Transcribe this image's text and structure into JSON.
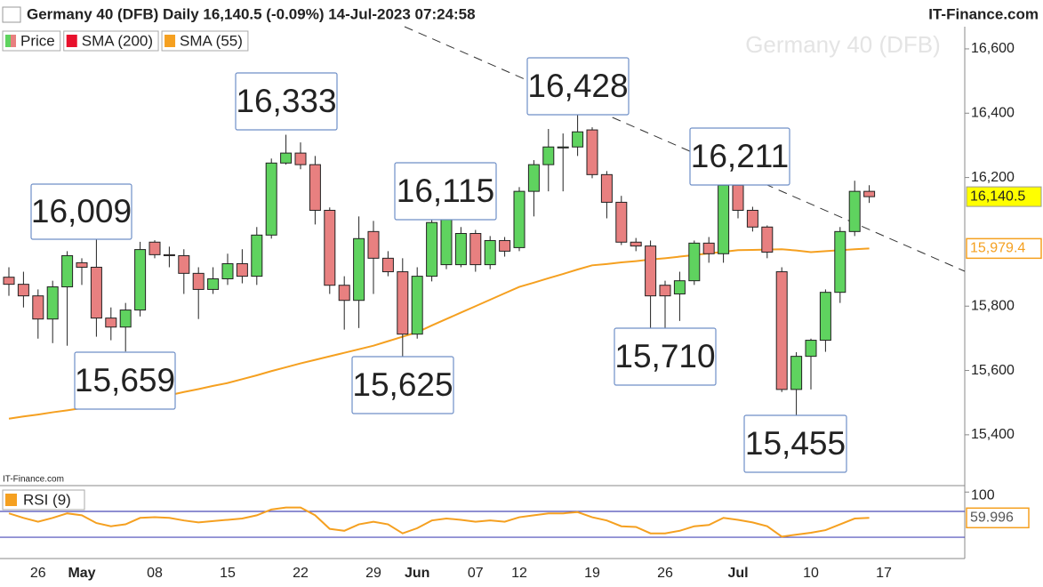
{
  "header": {
    "title": "Germany 40 (DFB) Daily 16,140.5 (-0.09%) 14-Jul-2023 07:24:58",
    "site": "IT-Finance.com"
  },
  "chart_data": {
    "type": "candlestick",
    "watermark": "Germany 40 (DFB)",
    "source": "IT-Finance.com",
    "price_name": "Price",
    "up_color": "#5fd35f",
    "down_color": "#e88080",
    "categories": [
      null,
      null,
      "26",
      null,
      null,
      "May",
      null,
      null,
      null,
      null,
      "08",
      null,
      null,
      null,
      null,
      "15",
      null,
      null,
      null,
      null,
      "22",
      null,
      null,
      null,
      null,
      "29",
      null,
      null,
      "Jun",
      null,
      null,
      null,
      "07",
      null,
      null,
      "12",
      null,
      null,
      null,
      null,
      "19",
      null,
      null,
      null,
      null,
      "26",
      null,
      null,
      null,
      null,
      "Jul",
      null,
      null,
      null,
      null,
      "10",
      null,
      null,
      null,
      null,
      "17"
    ],
    "open": [
      15890,
      15868,
      15832,
      15760,
      15860,
      15935,
      15921,
      15763,
      15735,
      15788,
      15999,
      15960,
      15957,
      15902,
      15852,
      15885,
      15932,
      15893,
      16021,
      16245,
      16276,
      16240,
      16098,
      15865,
      15818,
      16032,
      15949,
      15907,
      15713,
      15893,
      15929,
      15929,
      16026,
      15929,
      16004,
      15982,
      16157,
      16240,
      16292,
      16295,
      16348,
      16209,
      16123,
      15999,
      15987,
      15865,
      15838,
      15879,
      15996,
      15963,
      16176,
      16098,
      16046,
      15907,
      15541,
      15644,
      15694,
      15843,
      16032,
      16157,
      null
    ],
    "high": [
      15921,
      15907,
      15852,
      15879,
      15971,
      15949,
      16009,
      15796,
      15810,
      16000,
      16005,
      15985,
      15977,
      15921,
      15921,
      15963,
      15977,
      16046,
      16259,
      16333,
      16309,
      16267,
      16107,
      15893,
      16079,
      16065,
      15971,
      15949,
      15921,
      16079,
      16115,
      16046,
      16037,
      16018,
      16015,
      16170,
      16254,
      16351,
      16337,
      16428,
      16356,
      16220,
      16143,
      16012,
      16004,
      15879,
      15907,
      16004,
      16015,
      16184,
      16211,
      16109,
      16051,
      15921,
      15657,
      15699,
      15852,
      16046,
      16190,
      16176,
      null
    ],
    "low": [
      15832,
      15796,
      15699,
      15685,
      15677,
      15866,
      15705,
      15694,
      15659,
      15768,
      15949,
      15921,
      15838,
      15760,
      15838,
      15866,
      15871,
      15866,
      16010,
      16240,
      16226,
      16054,
      15838,
      15727,
      15732,
      15838,
      15893,
      15625,
      15699,
      15877,
      15915,
      15921,
      15907,
      15915,
      15954,
      15971,
      16079,
      16157,
      16157,
      16267,
      16198,
      16073,
      15990,
      15971,
      15727,
      15710,
      15754,
      15866,
      15935,
      15935,
      16073,
      16032,
      15949,
      15533,
      15455,
      15541,
      15658,
      15810,
      16018,
      16121,
      null
    ],
    "close": [
      15868,
      15832,
      15760,
      15860,
      15957,
      15921,
      15763,
      15735,
      15788,
      15976,
      15960,
      15957,
      15902,
      15852,
      15885,
      15932,
      15893,
      16021,
      16245,
      16276,
      16240,
      16098,
      15865,
      15818,
      16010,
      15949,
      15907,
      15713,
      15893,
      16060,
      16082,
      16026,
      15929,
      16004,
      15971,
      16157,
      16240,
      16295,
      16295,
      16342,
      16209,
      16123,
      15999,
      15987,
      15832,
      15832,
      15879,
      15996,
      15963,
      16176,
      16098,
      16046,
      15968,
      15541,
      15644,
      15694,
      15843,
      16032,
      16157,
      16140.5,
      null
    ],
    "price_label": {
      "value": 16140.5,
      "label": "16,140.5"
    },
    "series": [
      {
        "name": "SMA (200)",
        "color": "#e8102c",
        "values": [
          null,
          null,
          null,
          null,
          null,
          null,
          null,
          null,
          null,
          null,
          null,
          null,
          null,
          null,
          null,
          null,
          null,
          null,
          null,
          null,
          null,
          null,
          null,
          null,
          null,
          null,
          null,
          null,
          null,
          null,
          null,
          null,
          null,
          null,
          null,
          null,
          null,
          null,
          null,
          null,
          null,
          null,
          null,
          null,
          null,
          null,
          null,
          null,
          null,
          null,
          null,
          null,
          null,
          null,
          null,
          null,
          null,
          null,
          null,
          null,
          null
        ]
      },
      {
        "name": "SMA (55)",
        "color": "#f5a020",
        "values": [
          15450,
          15457,
          15463,
          15470,
          15476,
          15483,
          15489,
          15495,
          15501,
          15508,
          15514,
          15523,
          15533,
          15542,
          15552,
          15561,
          15573,
          15585,
          15598,
          15610,
          15622,
          15633,
          15644,
          15655,
          15666,
          15677,
          15691,
          15705,
          15719,
          15740,
          15760,
          15780,
          15800,
          15820,
          15840,
          15860,
          15873,
          15887,
          15900,
          15914,
          15927,
          15931,
          15936,
          15940,
          15945,
          15949,
          15954,
          15959,
          15964,
          15969,
          15974,
          15975,
          15976,
          15977,
          15973,
          15968,
          15971,
          15974,
          15977,
          15979.4,
          null
        ],
        "last_label": {
          "value": 15979.4,
          "label": "15,979.4"
        }
      }
    ],
    "ylim": [
      15242,
      16669
    ],
    "yticks": [
      {
        "value": 16600,
        "label": "16,600"
      },
      {
        "value": 16400,
        "label": "16,400"
      },
      {
        "value": 16200,
        "label": "16,200"
      },
      {
        "value": 15800,
        "label": "15,800"
      },
      {
        "value": 15600,
        "label": "15,600"
      },
      {
        "value": 15400,
        "label": "15,400"
      }
    ],
    "annotations": [
      "16,009",
      "15,659",
      "16,333",
      "15,625",
      "16,115",
      "16,428",
      "15,710",
      "16,211",
      "15,455"
    ],
    "rsi": {
      "name": "RSI (9)",
      "color": "#f5a020",
      "level_color": "#4a4ab8",
      "values": [
        67,
        60,
        54,
        60,
        67,
        64,
        52,
        47,
        50,
        60,
        61,
        60,
        56,
        53,
        55,
        57,
        59,
        64,
        73,
        76,
        76,
        64,
        43,
        40,
        50,
        54,
        50,
        36,
        44,
        56,
        59,
        57,
        54,
        56,
        54,
        61,
        64,
        67,
        67,
        69,
        61,
        56,
        47,
        46,
        36,
        36,
        40,
        47,
        49,
        60,
        57,
        53,
        47,
        31,
        34,
        37,
        41,
        50,
        59,
        59.996,
        null
      ],
      "ylim": [
        -3,
        110
      ],
      "yticks": [
        100
      ],
      "levels": [
        70,
        30
      ],
      "last_label": {
        "value": 59.996,
        "label": "59.996"
      }
    }
  }
}
